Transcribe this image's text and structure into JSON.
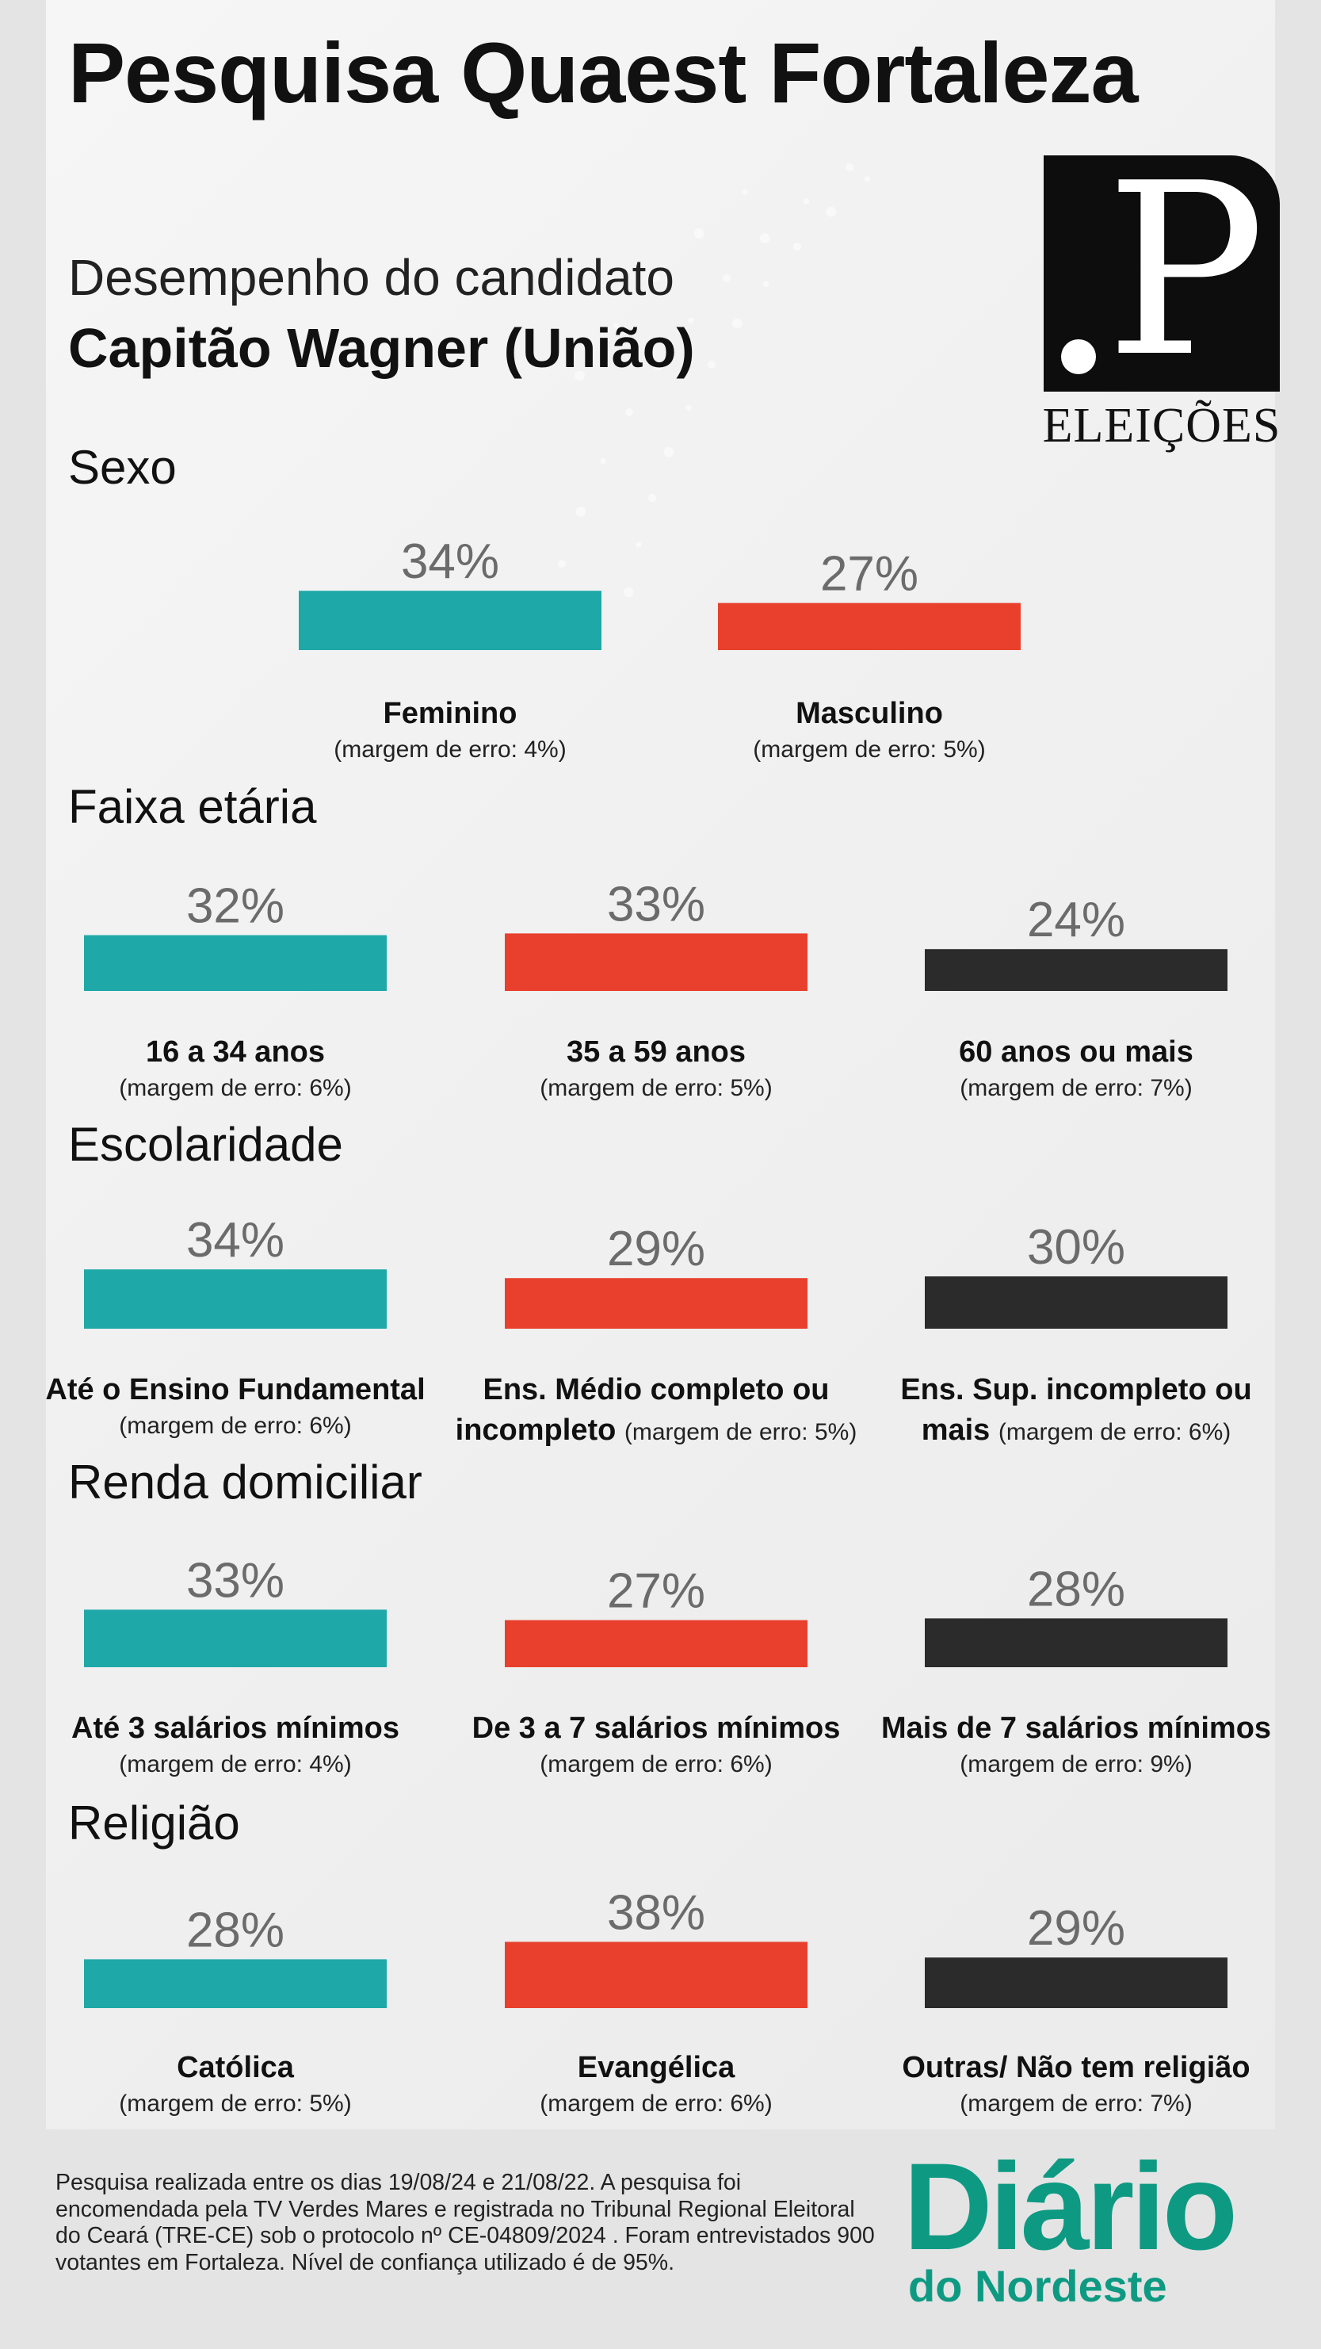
{
  "header": {
    "title": "Pesquisa Quaest Fortaleza",
    "subtitle_line1": "Desempenho do candidato",
    "subtitle_line2": "Capitão Wagner (União)"
  },
  "logo": {
    "letter": "P",
    "label": "ELEIÇÕES"
  },
  "colors": {
    "teal": "#1fa8a8",
    "red": "#e8402d",
    "dark": "#2b2b2b",
    "value_text": "#6b6b6b",
    "brand_green": "#0e9a82"
  },
  "chart_data": [
    {
      "type": "bar",
      "title": "Sexo",
      "categories": [
        "Feminino",
        "Masculino"
      ],
      "values": [
        34,
        27
      ],
      "value_labels": [
        "34%",
        "27%"
      ],
      "margins": [
        "(margem de erro: 4%)",
        "(margem de erro: 5%)"
      ]
    },
    {
      "type": "bar",
      "title": "Faixa etária",
      "categories": [
        "16 a 34 anos",
        "35 a 59 anos",
        "60 anos ou mais"
      ],
      "values": [
        32,
        33,
        24
      ],
      "value_labels": [
        "32%",
        "33%",
        "24%"
      ],
      "margins": [
        "(margem de erro: 6%)",
        "(margem de erro: 5%)",
        "(margem de erro: 7%)"
      ]
    },
    {
      "type": "bar",
      "title": "Escolaridade",
      "categories": [
        "Até o Ensino Fundamental",
        "Ens. Médio completo ou incompleto",
        "Ens. Sup. incompleto ou mais"
      ],
      "values": [
        34,
        29,
        30
      ],
      "value_labels": [
        "34%",
        "29%",
        "30%"
      ],
      "margins": [
        "(margem de erro: 6%)",
        "(margem de erro: 5%)",
        "(margem de erro: 6%)"
      ]
    },
    {
      "type": "bar",
      "title": "Renda domiciliar",
      "categories": [
        "Até 3 salários mínimos",
        "De 3 a 7 salários mínimos",
        "Mais de 7 salários mínimos"
      ],
      "values": [
        33,
        27,
        28
      ],
      "value_labels": [
        "33%",
        "27%",
        "28%"
      ],
      "margins": [
        "(margem de erro: 4%)",
        "(margem de erro: 6%)",
        "(margem de erro: 9%)"
      ]
    },
    {
      "type": "bar",
      "title": "Religião",
      "categories": [
        "Católica",
        "Evangélica",
        "Outras/ Não tem religião"
      ],
      "values": [
        28,
        38,
        29
      ],
      "value_labels": [
        "28%",
        "38%",
        "29%"
      ],
      "margins": [
        "(margem de erro: 5%)",
        "(margem de erro: 6%)",
        "(margem de erro: 7%)"
      ]
    }
  ],
  "footer": {
    "note": "Pesquisa realizada entre os dias 19/08/24 e  21/08/22. A pesquisa foi encomendada pela TV Verdes Mares e registrada no Tribunal Regional Eleitoral do Ceará (TRE-CE) sob o protocolo nº CE-04809/2024 . Foram entrevistados 900 votantes em Fortaleza. Nível de confiança utilizado é de 95%.",
    "brand_line1": "Diário",
    "brand_line2": "do Nordeste"
  }
}
